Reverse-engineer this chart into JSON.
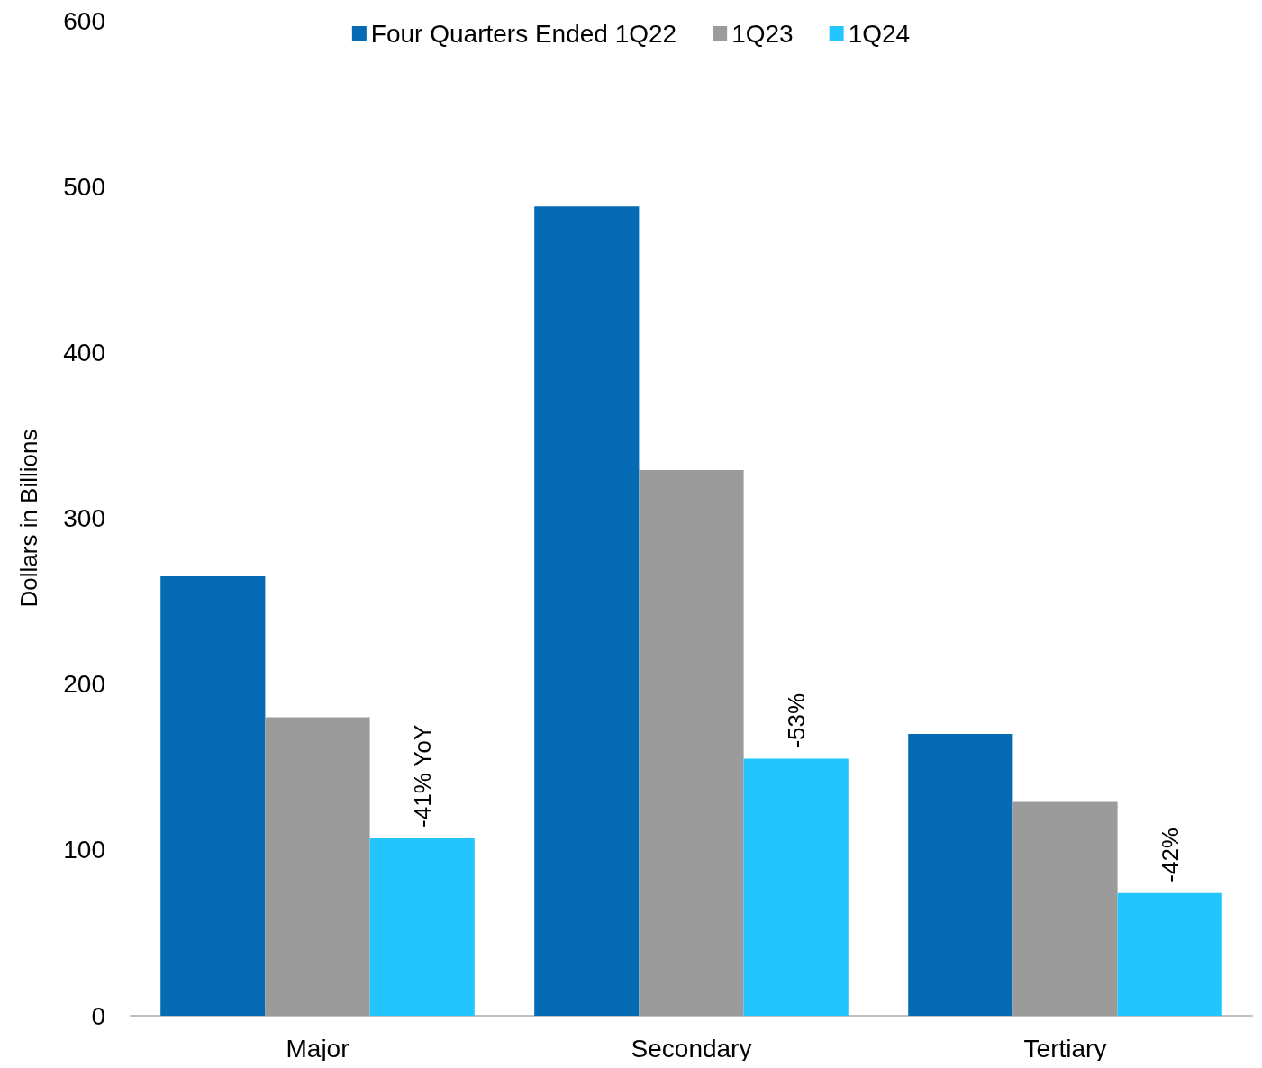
{
  "chart_data": {
    "type": "bar",
    "ylabel": "Dollars in Billions",
    "categories": [
      "Major",
      "Secondary",
      "Tertiary"
    ],
    "series": [
      {
        "name": "Four Quarters Ended 1Q22",
        "color": "#046bb4",
        "values": [
          265,
          488,
          170
        ]
      },
      {
        "name": "1Q23",
        "color": "#9b9b9b",
        "values": [
          180,
          329,
          129
        ]
      },
      {
        "name": "1Q24",
        "color": "#22c5fe",
        "values": [
          107,
          155,
          74
        ]
      }
    ],
    "annotations": [
      "-41% YoY",
      "-53%",
      "-42%"
    ],
    "ylim": [
      0,
      600
    ],
    "yticks": [
      0,
      100,
      200,
      300,
      400,
      500,
      600
    ],
    "grid": false,
    "legend": "top"
  }
}
